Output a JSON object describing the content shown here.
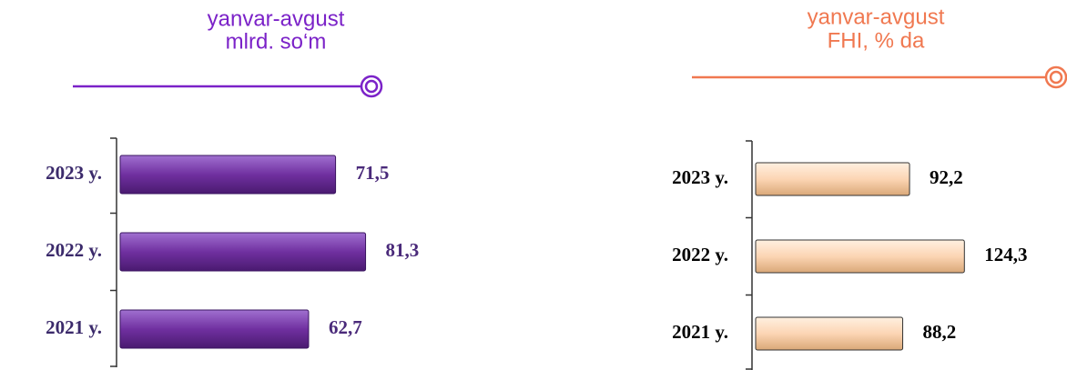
{
  "chart_data": [
    {
      "type": "bar",
      "orientation": "horizontal",
      "title": "yanvar-avgust",
      "subtitle": "mlrd. so‘m",
      "categories": [
        "2023 y.",
        "2022 y.",
        "2021 y."
      ],
      "values": [
        71.5,
        81.3,
        62.7
      ],
      "value_labels": [
        "71,5",
        "81,3",
        "62,7"
      ],
      "color": "#7030a0",
      "xlim": [
        0,
        85
      ]
    },
    {
      "type": "bar",
      "orientation": "horizontal",
      "title": "yanvar-avgust",
      "subtitle": "FHI, % da",
      "categories": [
        "2023 y.",
        "2022 y.",
        "2021 y."
      ],
      "values": [
        92.2,
        124.3,
        88.2
      ],
      "value_labels": [
        "92,2",
        "124,3",
        "88,2"
      ],
      "color": "#fcd5b4",
      "xlim": [
        0,
        130
      ]
    }
  ]
}
